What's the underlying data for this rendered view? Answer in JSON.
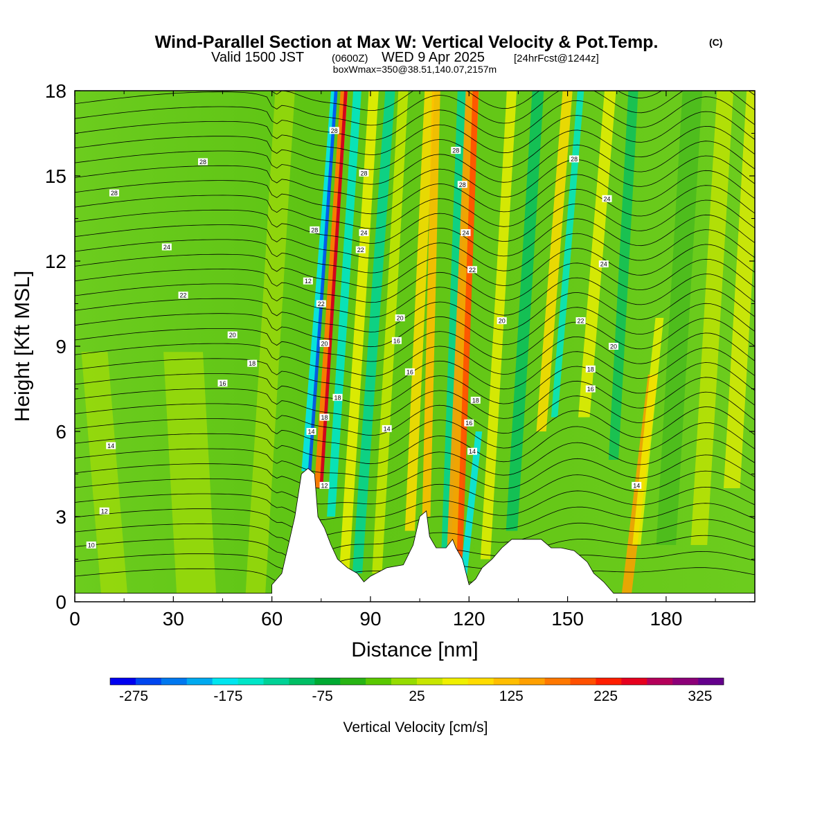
{
  "header": {
    "title": "Wind-Parallel Section at Max W: Vertical Velocity & Pot.Temp.",
    "copyright": "(C)",
    "valid_a": "Valid 1500 JST",
    "valid_zulu": "(0600Z)",
    "valid_b": "WED 9 Apr 2025",
    "forecast": "[24hrFcst@1244z]",
    "box_info": "boxWmax=350@38.51,140.07,2157m"
  },
  "chart_data": {
    "type": "heatmap",
    "xlabel": "Distance [nm]",
    "ylabel": "Height [Kft MSL]",
    "xlim": [
      0,
      207
    ],
    "ylim": [
      0,
      18
    ],
    "x_ticks": [
      "0",
      "30",
      "60",
      "90",
      "120",
      "150",
      "180"
    ],
    "x_tick_values": [
      0,
      30,
      60,
      90,
      120,
      150,
      180
    ],
    "y_ticks": [
      "0",
      "3",
      "6",
      "9",
      "12",
      "15",
      "18"
    ],
    "y_tick_values": [
      0,
      3,
      6,
      9,
      12,
      15,
      18
    ],
    "colorbar": {
      "label": "Vertical Velocity [cm/s]",
      "tick_labels": [
        "-275",
        "-175",
        "-75",
        "25",
        "125",
        "225",
        "325"
      ],
      "tick_values": [
        -275,
        -175,
        -75,
        25,
        125,
        225,
        325
      ],
      "min": -300,
      "max": 350,
      "colors": [
        "#0000f0",
        "#0046f0",
        "#0078f0",
        "#00aaf0",
        "#00e6f0",
        "#00e6c8",
        "#00d296",
        "#00be64",
        "#00aa32",
        "#28b414",
        "#5ac800",
        "#96dc00",
        "#c8e600",
        "#f0f000",
        "#ffdc00",
        "#ffbe00",
        "#ffa000",
        "#ff7800",
        "#ff5000",
        "#ff1e00",
        "#e6001e",
        "#b4005a",
        "#8c0078",
        "#64008c"
      ]
    },
    "contour_labels": [
      {
        "text": "28",
        "x": 12,
        "z": 14.4
      },
      {
        "text": "28",
        "x": 39,
        "z": 15.5
      },
      {
        "text": "24",
        "x": 28,
        "z": 12.5
      },
      {
        "text": "22",
        "x": 33,
        "z": 10.8
      },
      {
        "text": "20",
        "x": 48,
        "z": 9.4
      },
      {
        "text": "18",
        "x": 54,
        "z": 8.4
      },
      {
        "text": "16",
        "x": 45,
        "z": 7.7
      },
      {
        "text": "14",
        "x": 11,
        "z": 5.5
      },
      {
        "text": "12",
        "x": 9,
        "z": 3.2
      },
      {
        "text": "10",
        "x": 5,
        "z": 2
      },
      {
        "text": "28",
        "x": 73,
        "z": 13.1
      },
      {
        "text": "12",
        "x": 71,
        "z": 11.3
      },
      {
        "text": "22",
        "x": 75,
        "z": 10.5
      },
      {
        "text": "20",
        "x": 76,
        "z": 9.1
      },
      {
        "text": "18",
        "x": 80,
        "z": 7.2
      },
      {
        "text": "18",
        "x": 76,
        "z": 6.5
      },
      {
        "text": "14",
        "x": 72,
        "z": 6
      },
      {
        "text": "12",
        "x": 76,
        "z": 4.1
      },
      {
        "text": "28",
        "x": 79,
        "z": 16.6
      },
      {
        "text": "28",
        "x": 88,
        "z": 15.1
      },
      {
        "text": "24",
        "x": 88,
        "z": 13
      },
      {
        "text": "22",
        "x": 87,
        "z": 12.4
      },
      {
        "text": "20",
        "x": 99,
        "z": 10
      },
      {
        "text": "16",
        "x": 98,
        "z": 9.2
      },
      {
        "text": "16",
        "x": 102,
        "z": 8.1
      },
      {
        "text": "14",
        "x": 95,
        "z": 6.1
      },
      {
        "text": "28",
        "x": 116,
        "z": 15.9
      },
      {
        "text": "28",
        "x": 118,
        "z": 14.7
      },
      {
        "text": "24",
        "x": 119,
        "z": 13
      },
      {
        "text": "22",
        "x": 121,
        "z": 11.7
      },
      {
        "text": "20",
        "x": 130,
        "z": 9.9
      },
      {
        "text": "18",
        "x": 122,
        "z": 7.1
      },
      {
        "text": "16",
        "x": 120,
        "z": 6.3
      },
      {
        "text": "14",
        "x": 121,
        "z": 5.3
      },
      {
        "text": "28",
        "x": 152,
        "z": 15.6
      },
      {
        "text": "24",
        "x": 162,
        "z": 14.2
      },
      {
        "text": "24",
        "x": 161,
        "z": 11.9
      },
      {
        "text": "22",
        "x": 154,
        "z": 9.9
      },
      {
        "text": "20",
        "x": 164,
        "z": 9
      },
      {
        "text": "18",
        "x": 157,
        "z": 8.2
      },
      {
        "text": "16",
        "x": 157,
        "z": 7.5
      },
      {
        "text": "14",
        "x": 171,
        "z": 4.1
      }
    ]
  }
}
